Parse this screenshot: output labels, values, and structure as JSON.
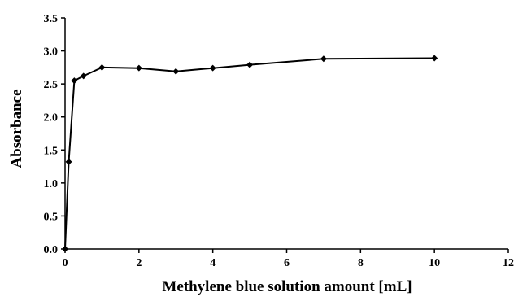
{
  "chart_data": {
    "type": "line",
    "title": "",
    "xlabel": "Methylene blue solution amount [mL]",
    "ylabel": "Absorbance",
    "xlim": [
      0,
      12
    ],
    "ylim": [
      0,
      3.5
    ],
    "x_ticks": [
      "0",
      "2",
      "4",
      "6",
      "8",
      "10",
      "12"
    ],
    "y_ticks": [
      "0.0",
      "0.5",
      "1.0",
      "1.5",
      "2.0",
      "2.5",
      "3.0",
      "3.5"
    ],
    "grid": false,
    "legend": "none",
    "series": [
      {
        "color": "#000000",
        "marker": "diamond",
        "x": [
          0,
          0.1,
          0.25,
          0.5,
          1,
          2,
          3,
          4,
          5,
          7,
          10
        ],
        "y": [
          0.0,
          1.32,
          2.55,
          2.62,
          2.75,
          2.74,
          2.69,
          2.74,
          2.79,
          2.88,
          2.89
        ]
      }
    ]
  }
}
